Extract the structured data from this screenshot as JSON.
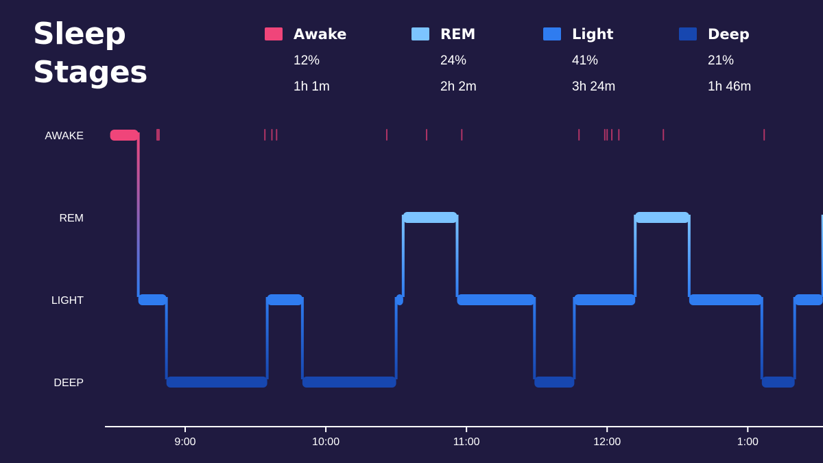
{
  "title": {
    "line1": "Sleep",
    "line2": "Stages"
  },
  "legend": [
    {
      "name": "Awake",
      "percent": "12%",
      "duration": "1h 1m",
      "color": "#f0457a"
    },
    {
      "name": "REM",
      "percent": "24%",
      "duration": "2h 2m",
      "color": "#7cc4ff"
    },
    {
      "name": "Light",
      "percent": "41%",
      "duration": "3h 24m",
      "color": "#2f7cf0"
    },
    {
      "name": "Deep",
      "percent": "21%",
      "duration": "1h 46m",
      "color": "#1747b0"
    }
  ],
  "chart_data": {
    "type": "step",
    "levels": [
      "AWAKE",
      "REM",
      "LIGHT",
      "DEEP"
    ],
    "x_ticks": [
      "9:00",
      "10:00",
      "11:00",
      "12:00",
      "1:00"
    ],
    "x_tick_minutes": [
      540,
      600,
      660,
      720,
      780
    ],
    "segments": [
      {
        "start": 508,
        "end": 520,
        "stage": "AWAKE"
      },
      {
        "start": 520,
        "end": 532,
        "stage": "LIGHT"
      },
      {
        "start": 532,
        "end": 575,
        "stage": "DEEP"
      },
      {
        "start": 575,
        "end": 590,
        "stage": "LIGHT"
      },
      {
        "start": 590,
        "end": 630,
        "stage": "DEEP"
      },
      {
        "start": 630,
        "end": 633,
        "stage": "LIGHT"
      },
      {
        "start": 633,
        "end": 656,
        "stage": "REM"
      },
      {
        "start": 656,
        "end": 689,
        "stage": "LIGHT"
      },
      {
        "start": 689,
        "end": 706,
        "stage": "DEEP"
      },
      {
        "start": 706,
        "end": 732,
        "stage": "LIGHT"
      },
      {
        "start": 732,
        "end": 755,
        "stage": "REM"
      },
      {
        "start": 755,
        "end": 786,
        "stage": "LIGHT"
      },
      {
        "start": 786,
        "end": 800,
        "stage": "DEEP"
      },
      {
        "start": 800,
        "end": 812,
        "stage": "LIGHT"
      },
      {
        "start": 812,
        "end": 820,
        "stage": "REM"
      }
    ],
    "brief_awakenings": [
      528,
      574,
      577,
      579,
      626,
      643,
      658,
      708,
      719,
      720,
      722,
      725,
      744,
      787
    ]
  }
}
